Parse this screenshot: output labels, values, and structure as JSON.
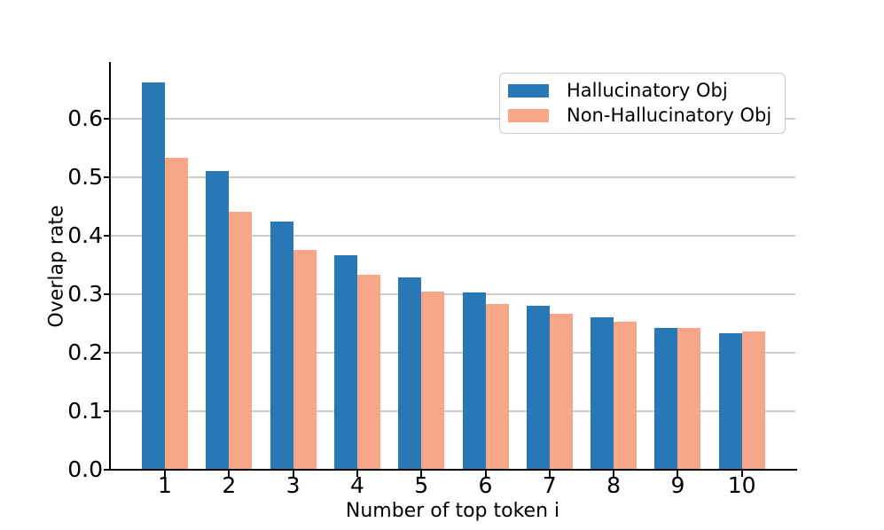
{
  "chart_data": {
    "type": "bar",
    "title": "",
    "xlabel": "Number of top token i",
    "ylabel": "Overlap rate",
    "categories": [
      "1",
      "2",
      "3",
      "4",
      "5",
      "6",
      "7",
      "8",
      "9",
      "10"
    ],
    "series": [
      {
        "name": "Hallucinatory Obj",
        "color": "#2878b5",
        "values": [
          0.662,
          0.51,
          0.425,
          0.366,
          0.329,
          0.303,
          0.281,
          0.26,
          0.243,
          0.234
        ]
      },
      {
        "name": "Non-Hallucinatory Obj",
        "color": "#f7a787",
        "values": [
          0.534,
          0.441,
          0.376,
          0.333,
          0.304,
          0.284,
          0.267,
          0.253,
          0.242,
          0.236
        ]
      }
    ],
    "yticks": [
      0.0,
      0.1,
      0.2,
      0.3,
      0.4,
      0.5,
      0.6
    ],
    "ylim": [
      0,
      0.697
    ],
    "grid": "horizontal",
    "gridline_color": "#cccccc",
    "legend_position": "upper right"
  }
}
